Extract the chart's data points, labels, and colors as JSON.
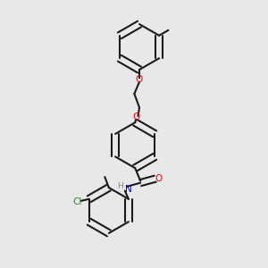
{
  "background_color": "#e8e8e8",
  "bond_color": "#1a1a1a",
  "atom_colors": {
    "O": "#ff0000",
    "N": "#0000cd",
    "Cl": "#228b22",
    "C": "#1a1a1a",
    "H": "#888888"
  },
  "lw": 1.5,
  "font_size": 7.5
}
